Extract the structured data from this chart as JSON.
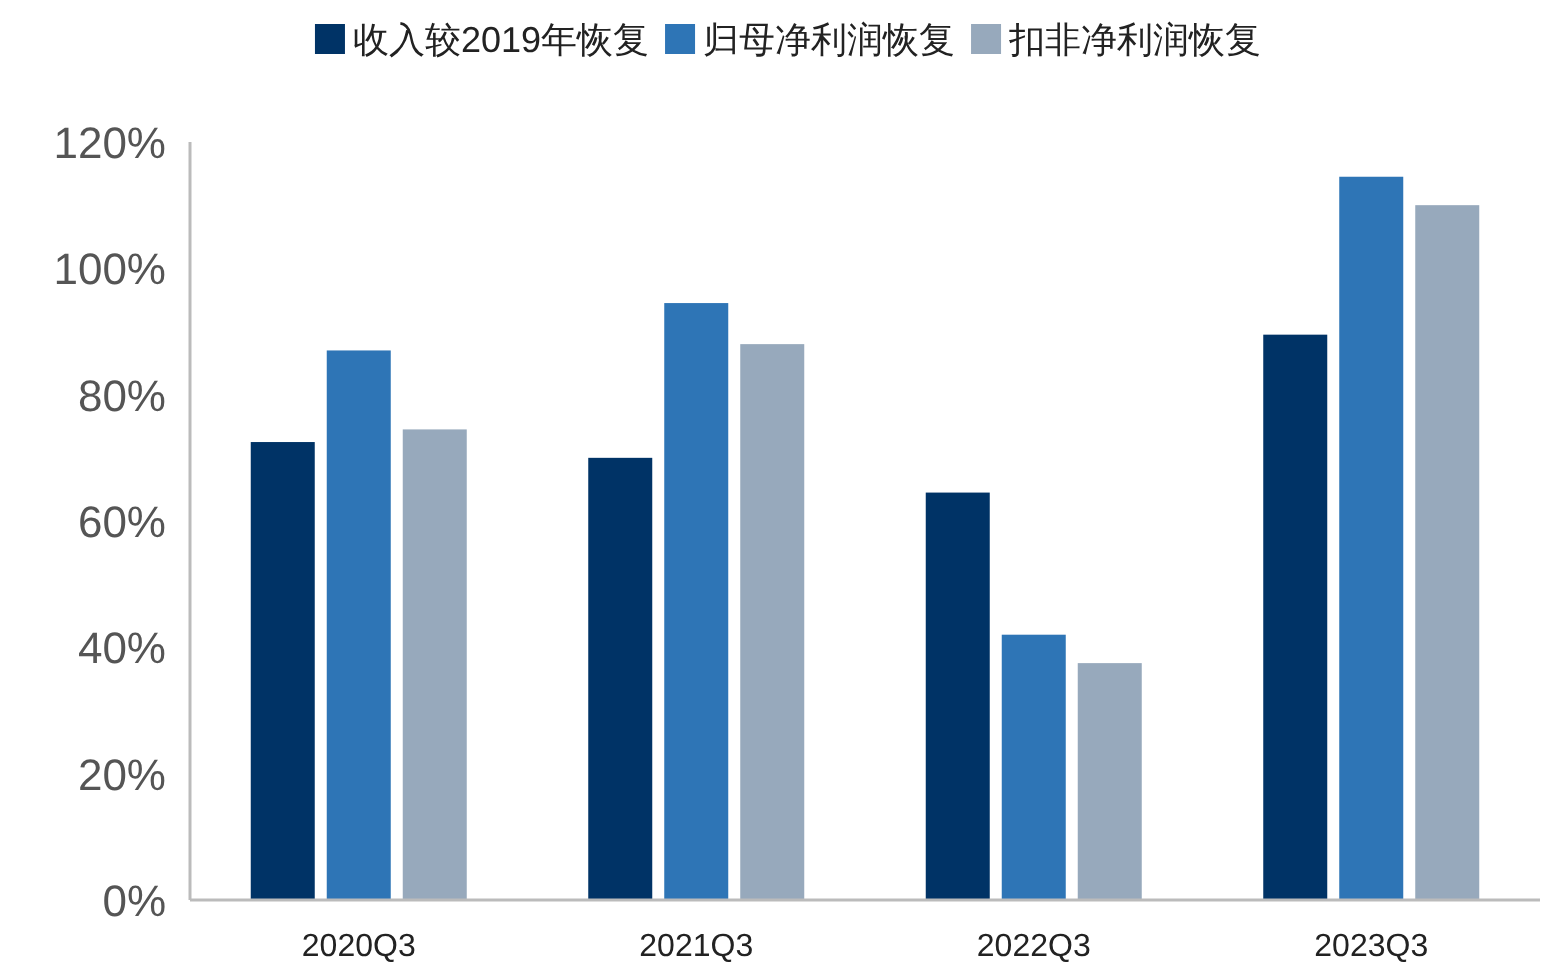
{
  "chart_data": {
    "type": "bar",
    "categories": [
      "2020Q3",
      "2021Q3",
      "2022Q3",
      "2023Q3"
    ],
    "series": [
      {
        "name": "收入较2019年恢复",
        "color": "#003366",
        "values": [
          72.5,
          70,
          64.5,
          89.5
        ]
      },
      {
        "name": "归母净利润恢复",
        "color": "#2e75b6",
        "values": [
          87,
          94.5,
          42,
          114.5
        ]
      },
      {
        "name": "扣非净利润恢复",
        "color": "#97a9bc",
        "values": [
          74.5,
          88,
          37.5,
          110
        ]
      }
    ],
    "ylim": [
      0,
      120
    ],
    "yticks": [
      {
        "value": 0,
        "label": "0%"
      },
      {
        "value": 20,
        "label": "20%"
      },
      {
        "value": 40,
        "label": "40%"
      },
      {
        "value": 60,
        "label": "60%"
      },
      {
        "value": 80,
        "label": "80%"
      },
      {
        "value": 100,
        "label": "100%"
      },
      {
        "value": 120,
        "label": "120%"
      }
    ],
    "legend": "top",
    "grid": false
  }
}
